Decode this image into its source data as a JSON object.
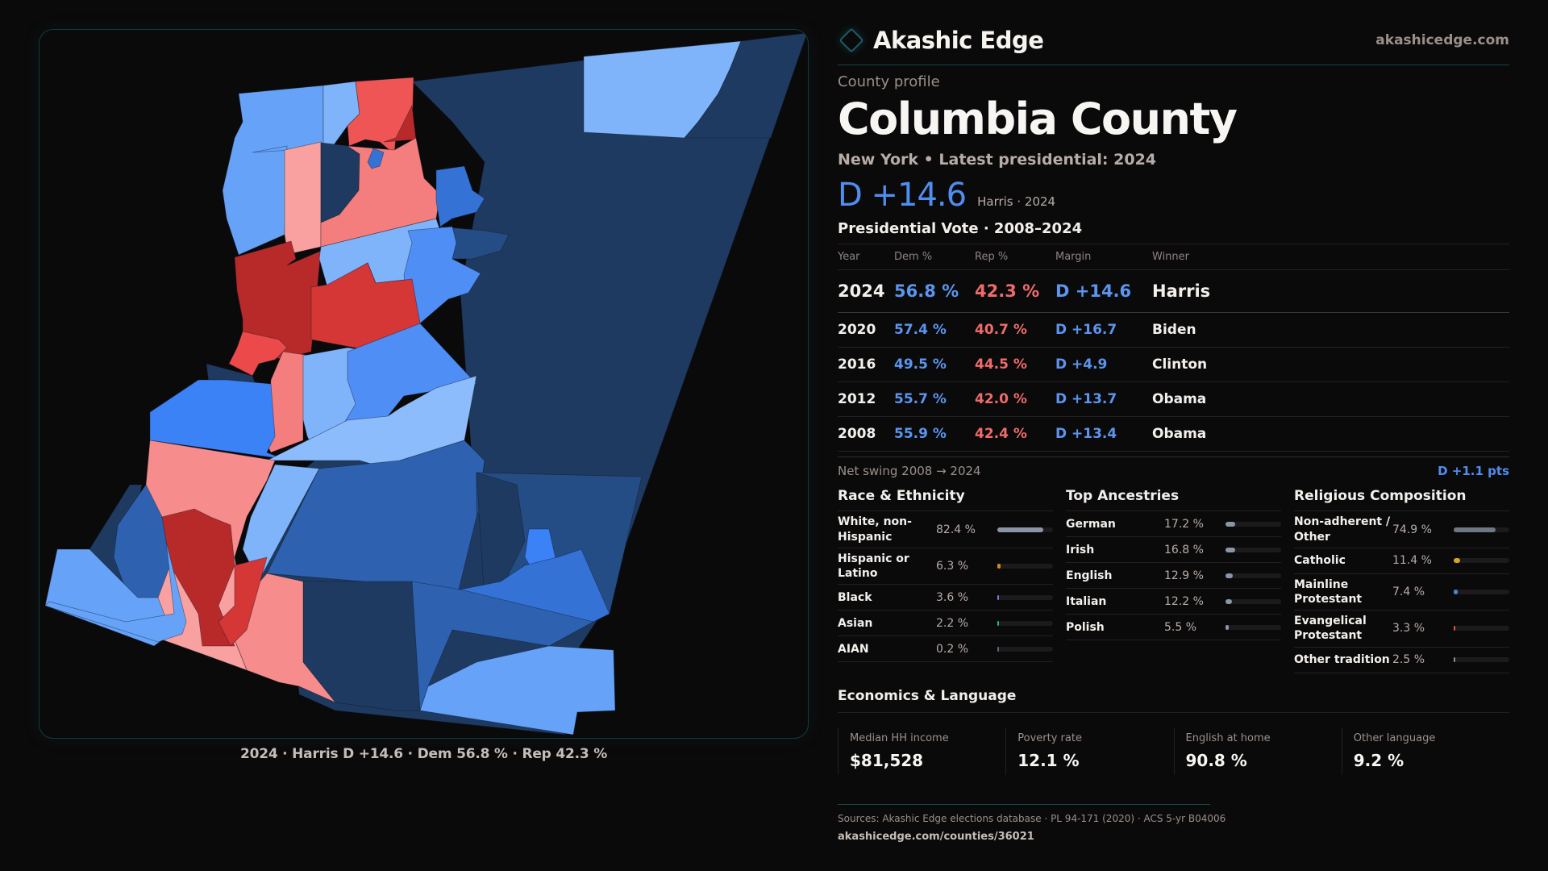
{
  "brand": {
    "name": "Akashic Edge",
    "site": "akashicedge.com",
    "logo_icon": "diamond-outline-icon"
  },
  "profile": {
    "eyebrow": "County profile",
    "title": "Columbia County",
    "subtitle": "New York  • Latest presidential: 2024",
    "headline_margin": "D +14.6",
    "headline_note": "Harris · 2024"
  },
  "votes": {
    "title": "Presidential Vote · 2008–2024",
    "headers": [
      "Year",
      "Dem %",
      "Rep %",
      "Margin",
      "Winner"
    ],
    "rows": [
      {
        "year": "2024",
        "dem": "56.8 %",
        "rep": "42.3 %",
        "margin": "D +14.6",
        "winner": "Harris"
      },
      {
        "year": "2020",
        "dem": "57.4 %",
        "rep": "40.7 %",
        "margin": "D +16.7",
        "winner": "Biden"
      },
      {
        "year": "2016",
        "dem": "49.5 %",
        "rep": "44.5 %",
        "margin": "D +4.9",
        "winner": "Clinton"
      },
      {
        "year": "2012",
        "dem": "55.7 %",
        "rep": "42.0 %",
        "margin": "D +13.7",
        "winner": "Obama"
      },
      {
        "year": "2008",
        "dem": "55.9 %",
        "rep": "42.4 %",
        "margin": "D +13.4",
        "winner": "Obama"
      }
    ],
    "swing_label": "Net swing 2008 → 2024",
    "swing_value": "D +1.1 pts"
  },
  "race": {
    "title": "Race & Ethnicity",
    "items": [
      {
        "label": "White, non-Hispanic",
        "pct": "82.4 %",
        "value": 82.4,
        "color": "#8a96a8"
      },
      {
        "label": "Hispanic or Latino",
        "pct": "6.3 %",
        "value": 6.3,
        "color": "#d68a10"
      },
      {
        "label": "Black",
        "pct": "3.6 %",
        "value": 3.6,
        "color": "#8b6fe0"
      },
      {
        "label": "Asian",
        "pct": "2.2 %",
        "value": 2.2,
        "color": "#22b585"
      },
      {
        "label": "AIAN",
        "pct": "0.2 %",
        "value": 0.2,
        "color": "#5b6a7d"
      }
    ]
  },
  "ancestry": {
    "title": "Top Ancestries",
    "items": [
      {
        "label": "German",
        "pct": "17.2 %",
        "value": 17.2,
        "color": "#8a96a8"
      },
      {
        "label": "Irish",
        "pct": "16.8 %",
        "value": 16.8,
        "color": "#8a96a8"
      },
      {
        "label": "English",
        "pct": "12.9 %",
        "value": 12.9,
        "color": "#8a96a8"
      },
      {
        "label": "Italian",
        "pct": "12.2 %",
        "value": 12.2,
        "color": "#8a96a8"
      },
      {
        "label": "Polish",
        "pct": "5.5 %",
        "value": 5.5,
        "color": "#8a96a8"
      }
    ]
  },
  "religion": {
    "title": "Religious Composition",
    "items": [
      {
        "label": "Non-adherent / Other",
        "pct": "74.9 %",
        "value": 74.9,
        "color": "#6f7684"
      },
      {
        "label": "Catholic",
        "pct": "11.4 %",
        "value": 11.4,
        "color": "#d9a21a"
      },
      {
        "label": "Mainline Protestant",
        "pct": "7.4 %",
        "value": 7.4,
        "color": "#4a86e0"
      },
      {
        "label": "Evangelical Protestant",
        "pct": "3.3 %",
        "value": 3.3,
        "color": "#d9534f"
      },
      {
        "label": "Other tradition",
        "pct": "2.5 %",
        "value": 2.5,
        "color": "#8a93a3"
      }
    ]
  },
  "economics": {
    "title": "Economics & Language",
    "cells": [
      {
        "label": "Median HH income",
        "value": "$81,528"
      },
      {
        "label": "Poverty rate",
        "value": "12.1 %"
      },
      {
        "label": "English at home",
        "value": "90.8 %"
      },
      {
        "label": "Other language",
        "value": "9.2 %"
      }
    ]
  },
  "footer": {
    "sources": "Sources: Akashic Edge elections database · PL 94-171 (2020) · ACS 5-yr B04006",
    "url": "akashicedge.com/counties/36021"
  },
  "map": {
    "caption": "2024 · Harris D +14.6 · Dem 56.8 % · Rep 42.3 %",
    "palette": {
      "d_safe": "#1f3a60",
      "d_likely_dark": "#254d85",
      "d_likely": "#2e62b0",
      "d_lean_strong": "#3572d6",
      "d_lean_bright": "#3b82f6",
      "d_lean": "#4f8ef5",
      "d_tilt": "#66a3f8",
      "d_tilt_light": "#7fb4fa",
      "d_tilt_pale": "#8cbcfb",
      "r_tilt": "#f9a0a0",
      "r_lean_light": "#f68c8c",
      "r_lean": "#f47e7e",
      "r_likely_bright": "#ec4a4a",
      "r_likely_mid": "#ef5555",
      "r_likely": "#d53636",
      "r_safe": "#b82a2a"
    }
  }
}
